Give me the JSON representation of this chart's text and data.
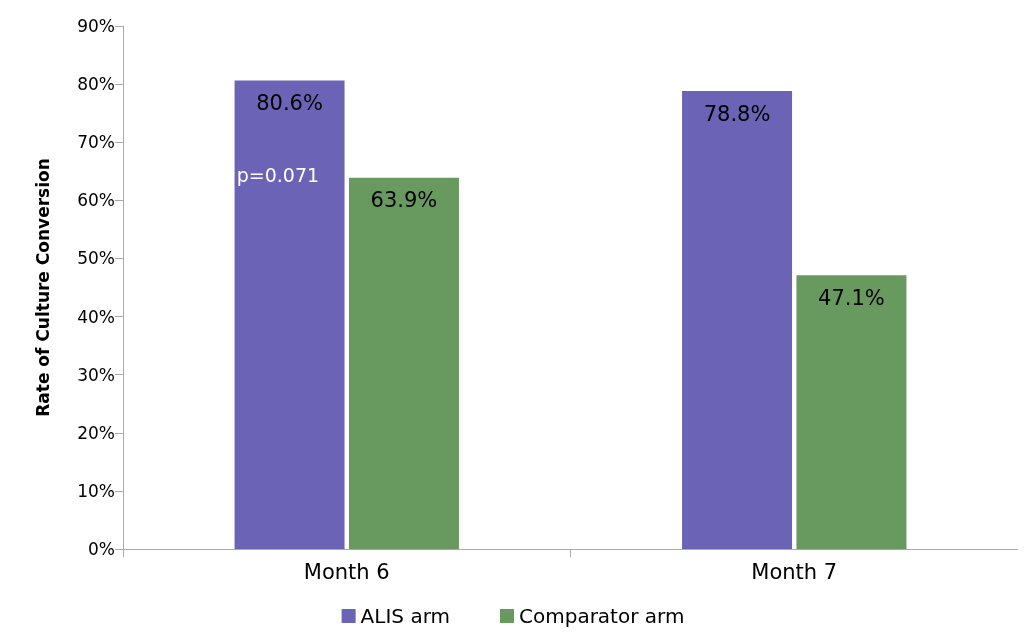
{
  "chart_data": {
    "type": "bar",
    "ylabel": "Rate of Culture Conversion",
    "categories": [
      "Month 6",
      "Month 7"
    ],
    "series": [
      {
        "name": "ALIS arm",
        "color": "#6b63b5",
        "values": [
          80.6,
          78.8
        ],
        "value_labels": [
          "80.6%",
          "78.8%"
        ]
      },
      {
        "name": "Comparator arm",
        "color": "#68995f",
        "values": [
          63.9,
          47.1
        ],
        "value_labels": [
          "63.9%",
          "47.1%"
        ]
      }
    ],
    "ylim": [
      0,
      90
    ],
    "yticks": [
      {
        "value": 0,
        "label": "0%"
      },
      {
        "value": 10,
        "label": "10%"
      },
      {
        "value": 20,
        "label": "20%"
      },
      {
        "value": 30,
        "label": "30%"
      },
      {
        "value": 40,
        "label": "40%"
      },
      {
        "value": 50,
        "label": "50%"
      },
      {
        "value": 60,
        "label": "60%"
      },
      {
        "value": 70,
        "label": "70%"
      },
      {
        "value": 80,
        "label": "80%"
      },
      {
        "value": 90,
        "label": "90%"
      }
    ],
    "annotations": [
      {
        "text": "p=0.071",
        "x": "Month 6",
        "y": 66
      }
    ],
    "grid": false,
    "legend": "bottom"
  }
}
